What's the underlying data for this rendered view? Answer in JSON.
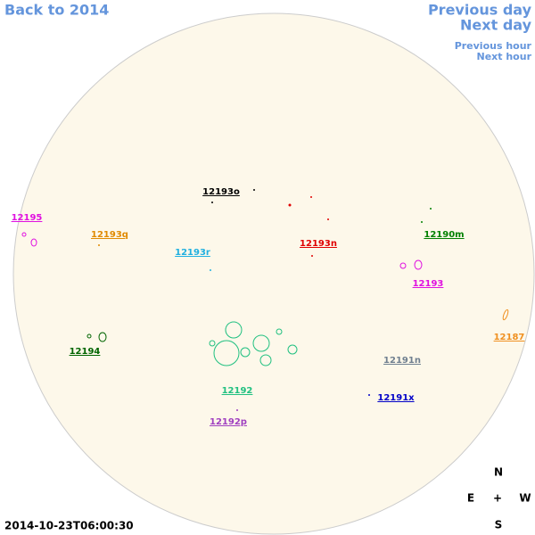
{
  "nav": {
    "back": "Back to 2014",
    "previous_day": "Previous day",
    "next_day": "Next day",
    "previous_hour": "Previous hour",
    "next_hour": "Next hour"
  },
  "regions": [
    {
      "label": "12195",
      "color": "#e010e0"
    },
    {
      "label": "12193q",
      "color": "#e08a00"
    },
    {
      "label": "12193o",
      "color": "#000000"
    },
    {
      "label": "12193n",
      "color": "#e00000"
    },
    {
      "label": "12193r",
      "color": "#20b0e0"
    },
    {
      "label": "12190m",
      "color": "#008000"
    },
    {
      "label": "12193",
      "color": "#e010e0"
    },
    {
      "label": "12187",
      "color": "#f09020"
    },
    {
      "label": "12194",
      "color": "#006400"
    },
    {
      "label": "12191n",
      "color": "#708090"
    },
    {
      "label": "12191x",
      "color": "#0000c8"
    },
    {
      "label": "12192",
      "color": "#20c080"
    },
    {
      "label": "12192p",
      "color": "#a040c0"
    }
  ],
  "compass": {
    "north": "N",
    "east": "E",
    "center": "+",
    "west": "W",
    "south": "S"
  },
  "timestamp": "2014-10-23T06:00:30"
}
